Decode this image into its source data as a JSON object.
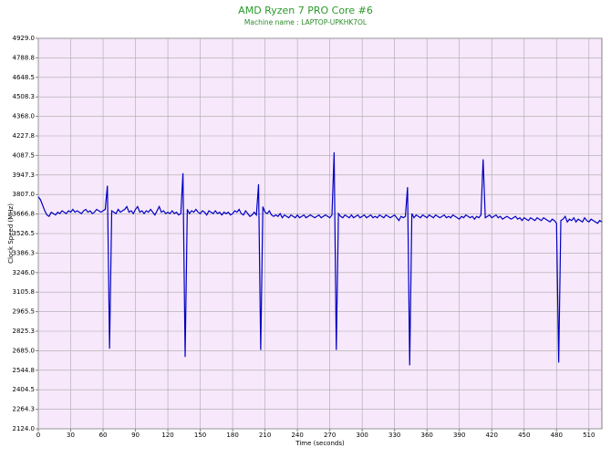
{
  "chart_data": {
    "type": "line",
    "title": "AMD Ryzen 7 PRO Core #6",
    "subtitle": "Machine name : LAPTOP-UPKHK7OL",
    "xlabel": "Time (seconds)",
    "ylabel": "Clock Speed (MHz)",
    "color": "#0000c0",
    "grid": true,
    "xlim": [
      0,
      522
    ],
    "ylim": [
      2124.0,
      4929.0
    ],
    "xticks": [
      0,
      30,
      60,
      90,
      120,
      150,
      180,
      210,
      240,
      270,
      300,
      330,
      360,
      390,
      420,
      450,
      480,
      510
    ],
    "yticks": [
      {
        "value": 2124.0,
        "label": "2124.0"
      },
      {
        "value": 2264.25,
        "label": "2264.3"
      },
      {
        "value": 2404.5,
        "label": "2404.5"
      },
      {
        "value": 2544.75,
        "label": "2544.8"
      },
      {
        "value": 2685.0,
        "label": "2685.0"
      },
      {
        "value": 2825.25,
        "label": "2825.3"
      },
      {
        "value": 2965.5,
        "label": "2965.5"
      },
      {
        "value": 3105.75,
        "label": "3105.8"
      },
      {
        "value": 3246.0,
        "label": "3246.0"
      },
      {
        "value": 3386.25,
        "label": "3386.3"
      },
      {
        "value": 3526.5,
        "label": "3526.5"
      },
      {
        "value": 3666.75,
        "label": "3666.8"
      },
      {
        "value": 3807.0,
        "label": "3807.0"
      },
      {
        "value": 3947.25,
        "label": "3947.3"
      },
      {
        "value": 4087.5,
        "label": "4087.5"
      },
      {
        "value": 4227.75,
        "label": "4227.8"
      },
      {
        "value": 4368.0,
        "label": "4368.0"
      },
      {
        "value": 4508.25,
        "label": "4508.3"
      },
      {
        "value": 4648.5,
        "label": "4648.5"
      },
      {
        "value": 4788.75,
        "label": "4788.8"
      },
      {
        "value": 4929.0,
        "label": "4929.0"
      }
    ],
    "x": [
      0,
      2,
      4,
      6,
      8,
      10,
      12,
      14,
      16,
      18,
      20,
      22,
      24,
      26,
      28,
      30,
      32,
      34,
      36,
      38,
      40,
      42,
      44,
      46,
      48,
      50,
      52,
      54,
      56,
      58,
      60,
      62,
      64,
      66,
      68,
      70,
      72,
      74,
      76,
      78,
      80,
      82,
      84,
      86,
      88,
      90,
      92,
      94,
      96,
      98,
      100,
      102,
      104,
      106,
      108,
      110,
      112,
      114,
      116,
      118,
      120,
      122,
      124,
      126,
      128,
      130,
      132,
      134,
      136,
      138,
      140,
      142,
      144,
      146,
      148,
      150,
      152,
      154,
      156,
      158,
      160,
      162,
      164,
      166,
      168,
      170,
      172,
      174,
      176,
      178,
      180,
      182,
      184,
      186,
      188,
      190,
      192,
      194,
      196,
      198,
      200,
      202,
      204,
      206,
      208,
      210,
      212,
      214,
      216,
      218,
      220,
      222,
      224,
      226,
      228,
      230,
      232,
      234,
      236,
      238,
      240,
      242,
      244,
      246,
      248,
      250,
      252,
      254,
      256,
      258,
      260,
      262,
      264,
      266,
      268,
      270,
      272,
      274,
      276,
      278,
      280,
      282,
      284,
      286,
      288,
      290,
      292,
      294,
      296,
      298,
      300,
      302,
      304,
      306,
      308,
      310,
      312,
      314,
      316,
      318,
      320,
      322,
      324,
      326,
      328,
      330,
      332,
      334,
      336,
      338,
      340,
      342,
      344,
      346,
      348,
      350,
      352,
      354,
      356,
      358,
      360,
      362,
      364,
      366,
      368,
      370,
      372,
      374,
      376,
      378,
      380,
      382,
      384,
      386,
      388,
      390,
      392,
      394,
      396,
      398,
      400,
      402,
      404,
      406,
      408,
      410,
      412,
      414,
      416,
      418,
      420,
      422,
      424,
      426,
      428,
      430,
      432,
      434,
      436,
      438,
      440,
      442,
      444,
      446,
      448,
      450,
      452,
      454,
      456,
      458,
      460,
      462,
      464,
      466,
      468,
      470,
      472,
      474,
      476,
      478,
      480,
      482,
      484,
      486,
      488,
      490,
      492,
      494,
      496,
      498,
      500,
      502,
      504,
      506,
      508,
      510,
      512,
      514,
      516,
      518,
      520,
      522
    ],
    "values": [
      3790,
      3770,
      3730,
      3690,
      3660,
      3650,
      3680,
      3670,
      3660,
      3680,
      3670,
      3690,
      3680,
      3670,
      3690,
      3680,
      3700,
      3680,
      3690,
      3680,
      3670,
      3690,
      3700,
      3680,
      3690,
      3670,
      3680,
      3700,
      3690,
      3680,
      3690,
      3700,
      3870,
      2700,
      3690,
      3680,
      3670,
      3700,
      3680,
      3690,
      3700,
      3720,
      3680,
      3690,
      3670,
      3700,
      3720,
      3680,
      3690,
      3670,
      3690,
      3680,
      3700,
      3680,
      3660,
      3690,
      3720,
      3680,
      3690,
      3670,
      3680,
      3670,
      3690,
      3670,
      3680,
      3660,
      3670,
      3960,
      2640,
      3700,
      3670,
      3690,
      3680,
      3700,
      3680,
      3670,
      3690,
      3680,
      3660,
      3690,
      3680,
      3670,
      3690,
      3670,
      3680,
      3660,
      3680,
      3670,
      3680,
      3660,
      3670,
      3690,
      3680,
      3700,
      3670,
      3660,
      3690,
      3670,
      3650,
      3660,
      3680,
      3660,
      3880,
      2690,
      3720,
      3680,
      3670,
      3690,
      3660,
      3650,
      3660,
      3650,
      3670,
      3640,
      3660,
      3650,
      3640,
      3660,
      3650,
      3640,
      3660,
      3640,
      3650,
      3660,
      3640,
      3650,
      3660,
      3650,
      3640,
      3650,
      3660,
      3640,
      3650,
      3660,
      3650,
      3640,
      3660,
      4110,
      2690,
      3670,
      3650,
      3640,
      3660,
      3650,
      3640,
      3660,
      3640,
      3650,
      3660,
      3640,
      3650,
      3660,
      3640,
      3650,
      3660,
      3640,
      3650,
      3640,
      3660,
      3650,
      3640,
      3660,
      3650,
      3640,
      3650,
      3660,
      3640,
      3620,
      3650,
      3640,
      3650,
      3860,
      2580,
      3670,
      3640,
      3660,
      3650,
      3640,
      3660,
      3650,
      3640,
      3660,
      3650,
      3640,
      3660,
      3650,
      3640,
      3650,
      3660,
      3640,
      3650,
      3640,
      3660,
      3650,
      3640,
      3630,
      3650,
      3640,
      3660,
      3650,
      3640,
      3650,
      3630,
      3650,
      3640,
      3660,
      4060,
      3640,
      3650,
      3660,
      3640,
      3650,
      3660,
      3640,
      3650,
      3630,
      3640,
      3650,
      3640,
      3630,
      3640,
      3650,
      3630,
      3640,
      3620,
      3640,
      3630,
      3620,
      3640,
      3630,
      3620,
      3640,
      3630,
      3620,
      3640,
      3630,
      3620,
      3610,
      3630,
      3620,
      3600,
      2600,
      3620,
      3630,
      3650,
      3610,
      3630,
      3620,
      3640,
      3610,
      3630,
      3620,
      3610,
      3640,
      3620,
      3610,
      3630,
      3620,
      3610,
      3600,
      3620,
      3610
    ]
  }
}
